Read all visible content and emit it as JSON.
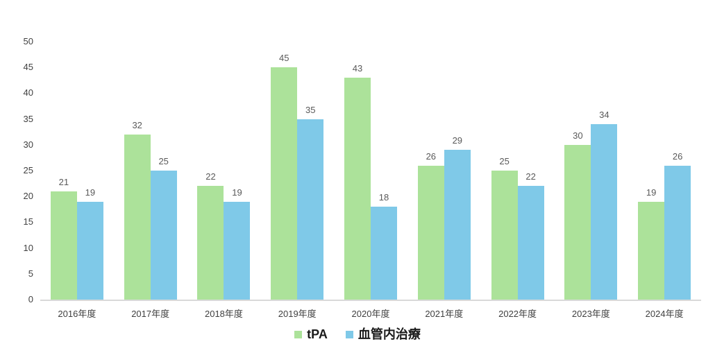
{
  "chart_data": {
    "type": "bar",
    "title": "",
    "xlabel": "",
    "ylabel": "",
    "categories": [
      "2016年度",
      "2017年度",
      "2018年度",
      "2019年度",
      "2020年度",
      "2021年度",
      "2022年度",
      "2023年度",
      "2024年度"
    ],
    "series": [
      {
        "name": "tPA",
        "color": "#ACE29A",
        "values": [
          21,
          32,
          22,
          45,
          43,
          26,
          25,
          30,
          19
        ]
      },
      {
        "name": "血管内治療",
        "color": "#7FC9E8",
        "values": [
          19,
          25,
          19,
          35,
          18,
          29,
          22,
          34,
          26
        ]
      }
    ],
    "ylim": [
      0,
      50
    ],
    "ytick_step": 5,
    "grid": false,
    "data_labels": true,
    "legend_position": "bottom"
  },
  "colors": {
    "background": "#FFFFFF",
    "axis_line": "#D9D9D9",
    "tick_label": "#404040",
    "data_label": "#595959",
    "legend_text": "#1A1A1A"
  }
}
